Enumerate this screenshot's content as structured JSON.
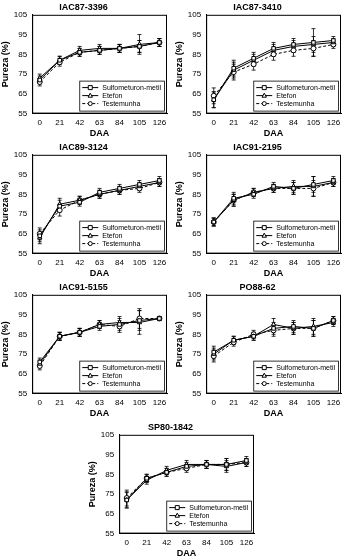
{
  "chart_data": [
    {
      "type": "line",
      "title": "IAC87-3396",
      "x_label": "DAA",
      "y_label": "Pureza (%)",
      "x": [
        0,
        21,
        42,
        63,
        84,
        105,
        126
      ],
      "xlim": [
        -8,
        134
      ],
      "xticks": [
        0,
        21,
        42,
        63,
        84,
        105,
        126
      ],
      "ylim": [
        55,
        105
      ],
      "yticks": [
        55,
        65,
        75,
        85,
        95,
        105
      ],
      "grid": false,
      "legend": "lower right",
      "series": [
        {
          "name": "Sulfometuron-metil",
          "color": "#000000",
          "marker": "square",
          "line_style": "solid",
          "values": [
            72,
            82,
            86,
            87,
            88,
            89,
            91
          ],
          "errors": [
            2,
            2,
            2,
            2,
            2,
            3,
            2
          ]
        },
        {
          "name": "Etefon",
          "color": "#000000",
          "marker": "triangle",
          "line_style": "solid",
          "values": [
            73,
            82,
            87,
            88,
            88,
            90,
            91
          ],
          "errors": [
            2,
            2,
            2,
            2,
            2,
            5,
            2
          ]
        },
        {
          "name": "Testemunha",
          "color": "#000000",
          "marker": "circle",
          "line_style": "dashed",
          "values": [
            71,
            81,
            86,
            87,
            88,
            89,
            91
          ],
          "errors": [
            2,
            2,
            2,
            2,
            2,
            3,
            2
          ]
        }
      ]
    },
    {
      "type": "line",
      "title": "IAC87-3410",
      "x_label": "DAA",
      "y_label": "Pureza (%)",
      "x": [
        0,
        21,
        42,
        63,
        84,
        105,
        126
      ],
      "xlim": [
        -8,
        134
      ],
      "xticks": [
        0,
        21,
        42,
        63,
        84,
        105,
        126
      ],
      "ylim": [
        55,
        105
      ],
      "yticks": [
        55,
        65,
        75,
        85,
        95,
        105
      ],
      "grid": false,
      "legend": "lower right",
      "series": [
        {
          "name": "Sulfometuron-metil",
          "color": "#000000",
          "marker": "square",
          "line_style": "solid",
          "values": [
            62,
            78,
            83,
            88,
            90,
            91,
            92
          ],
          "errors": [
            4,
            4,
            3,
            3,
            3,
            7,
            2
          ]
        },
        {
          "name": "Etefon",
          "color": "#000000",
          "marker": "triangle",
          "line_style": "solid",
          "values": [
            62,
            77,
            82,
            87,
            89,
            90,
            91
          ],
          "errors": [
            4,
            4,
            3,
            3,
            3,
            4,
            2
          ]
        },
        {
          "name": "Testemunha",
          "color": "#000000",
          "marker": "circle",
          "line_style": "dashed",
          "values": [
            64,
            76,
            80,
            85,
            87,
            88,
            90
          ],
          "errors": [
            4,
            4,
            3,
            3,
            3,
            4,
            2
          ]
        }
      ]
    },
    {
      "type": "line",
      "title": "IAC89-3124",
      "x_label": "DAA",
      "y_label": "Pureza (%)",
      "x": [
        0,
        21,
        42,
        63,
        84,
        105,
        126
      ],
      "xlim": [
        -8,
        134
      ],
      "xticks": [
        0,
        21,
        42,
        63,
        84,
        105,
        126
      ],
      "ylim": [
        55,
        105
      ],
      "yticks": [
        55,
        65,
        75,
        85,
        95,
        105
      ],
      "grid": false,
      "legend": "lower right",
      "series": [
        {
          "name": "Sulfometuron-metil",
          "color": "#000000",
          "marker": "square",
          "line_style": "solid",
          "values": [
            64,
            79,
            81,
            86,
            88,
            90,
            92
          ],
          "errors": [
            3,
            3,
            2,
            2,
            2,
            2,
            2
          ]
        },
        {
          "name": "Etefon",
          "color": "#000000",
          "marker": "triangle",
          "line_style": "solid",
          "values": [
            63,
            80,
            82,
            85,
            87,
            89,
            91
          ],
          "errors": [
            3,
            3,
            2,
            2,
            2,
            2,
            2
          ]
        },
        {
          "name": "Testemunha",
          "color": "#000000",
          "marker": "circle",
          "line_style": "dashed",
          "values": [
            65,
            77,
            82,
            85,
            87,
            88,
            91
          ],
          "errors": [
            3,
            3,
            2,
            2,
            2,
            2,
            2
          ]
        }
      ]
    },
    {
      "type": "line",
      "title": "IAC91-2195",
      "x_label": "DAA",
      "y_label": "Pureza (%)",
      "x": [
        0,
        21,
        42,
        63,
        84,
        105,
        126
      ],
      "xlim": [
        -8,
        134
      ],
      "xticks": [
        0,
        21,
        42,
        63,
        84,
        105,
        126
      ],
      "ylim": [
        55,
        105
      ],
      "yticks": [
        55,
        65,
        75,
        85,
        95,
        105
      ],
      "grid": false,
      "legend": "lower right",
      "series": [
        {
          "name": "Sulfometuron-metil",
          "color": "#000000",
          "marker": "square",
          "line_style": "solid",
          "values": [
            71,
            83,
            85,
            89,
            88,
            90,
            92
          ],
          "errors": [
            2,
            3,
            2,
            2,
            3,
            4,
            2
          ]
        },
        {
          "name": "Etefon",
          "color": "#000000",
          "marker": "triangle",
          "line_style": "solid",
          "values": [
            71,
            82,
            86,
            88,
            89,
            89,
            91
          ],
          "errors": [
            2,
            3,
            2,
            2,
            3,
            5,
            2
          ]
        },
        {
          "name": "Testemunha",
          "color": "#000000",
          "marker": "circle",
          "line_style": "dashed",
          "values": [
            71,
            82,
            86,
            88,
            88,
            88,
            91
          ],
          "errors": [
            2,
            3,
            2,
            2,
            3,
            4,
            2
          ]
        }
      ]
    },
    {
      "type": "line",
      "title": "IAC91-5155",
      "x_label": "DAA",
      "y_label": "Pureza (%)",
      "x": [
        0,
        21,
        42,
        63,
        84,
        105,
        126
      ],
      "xlim": [
        -8,
        134
      ],
      "xticks": [
        0,
        21,
        42,
        63,
        84,
        105,
        126
      ],
      "ylim": [
        55,
        105
      ],
      "yticks": [
        55,
        65,
        75,
        85,
        95,
        105
      ],
      "grid": false,
      "legend": "lower right",
      "series": [
        {
          "name": "Sulfometuron-metil",
          "color": "#000000",
          "marker": "square",
          "line_style": "solid",
          "values": [
            71,
            84,
            86,
            89,
            90,
            92,
            93
          ],
          "errors": [
            2,
            2,
            2,
            2,
            3,
            5,
            1
          ]
        },
        {
          "name": "Etefon",
          "color": "#000000",
          "marker": "triangle",
          "line_style": "solid",
          "values": [
            70,
            84,
            86,
            90,
            91,
            91,
            93
          ],
          "errors": [
            2,
            2,
            2,
            2,
            3,
            6,
            1
          ]
        },
        {
          "name": "Testemunha",
          "color": "#000000",
          "marker": "circle",
          "line_style": "dashed",
          "values": [
            69,
            84,
            86,
            90,
            89,
            93,
            93
          ],
          "errors": [
            2,
            2,
            2,
            2,
            3,
            5,
            1
          ]
        }
      ]
    },
    {
      "type": "line",
      "title": "PO88-62",
      "x_label": "DAA",
      "y_label": "Pureza (%)",
      "x": [
        0,
        21,
        42,
        63,
        84,
        105,
        126
      ],
      "xlim": [
        -8,
        134
      ],
      "xticks": [
        0,
        21,
        42,
        63,
        84,
        105,
        126
      ],
      "ylim": [
        55,
        105
      ],
      "yticks": [
        55,
        65,
        75,
        85,
        95,
        105
      ],
      "grid": false,
      "legend": "lower right",
      "series": [
        {
          "name": "Sulfometuron-metil",
          "color": "#000000",
          "marker": "square",
          "line_style": "solid",
          "values": [
            76,
            82,
            84,
            88,
            89,
            88,
            92
          ],
          "errors": [
            3,
            2,
            2,
            3,
            3,
            4,
            2
          ]
        },
        {
          "name": "Etefon",
          "color": "#000000",
          "marker": "triangle",
          "line_style": "solid",
          "values": [
            75,
            82,
            84,
            90,
            88,
            89,
            91
          ],
          "errors": [
            3,
            2,
            2,
            3,
            3,
            4,
            2
          ]
        },
        {
          "name": "Testemunha",
          "color": "#000000",
          "marker": "circle",
          "line_style": "dashed",
          "values": [
            74,
            81,
            85,
            87,
            88,
            88,
            92
          ],
          "errors": [
            3,
            2,
            2,
            3,
            3,
            4,
            2
          ]
        }
      ]
    },
    {
      "type": "line",
      "title": "SP80-1842",
      "x_label": "DAA",
      "y_label": "Pureza (%)",
      "x": [
        0,
        21,
        42,
        63,
        84,
        105,
        126
      ],
      "xlim": [
        -8,
        134
      ],
      "xticks": [
        0,
        21,
        42,
        63,
        84,
        105,
        126
      ],
      "ylim": [
        55,
        105
      ],
      "yticks": [
        55,
        65,
        75,
        85,
        95,
        105
      ],
      "grid": false,
      "legend": "lower right",
      "series": [
        {
          "name": "Sulfometuron-metil",
          "color": "#000000",
          "marker": "square",
          "line_style": "solid",
          "values": [
            72,
            83,
            86,
            89,
            90,
            90,
            92
          ],
          "errors": [
            4,
            2,
            2,
            2,
            2,
            3,
            2
          ]
        },
        {
          "name": "Etefon",
          "color": "#000000",
          "marker": "triangle",
          "line_style": "solid",
          "values": [
            72,
            82,
            87,
            90,
            90,
            89,
            91
          ],
          "errors": [
            4,
            2,
            2,
            2,
            2,
            3,
            2
          ]
        },
        {
          "name": "Testemunha",
          "color": "#000000",
          "marker": "circle",
          "line_style": "dashed",
          "values": [
            73,
            83,
            86,
            88,
            90,
            90,
            91
          ],
          "errors": [
            4,
            2,
            2,
            2,
            2,
            3,
            2
          ]
        }
      ]
    }
  ]
}
